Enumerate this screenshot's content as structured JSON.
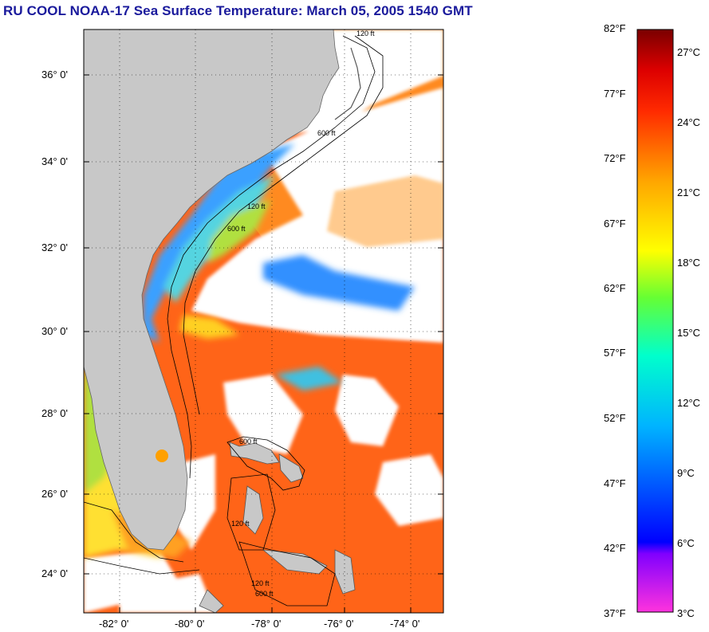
{
  "title": "RU COOL  NOAA-17  Sea Surface Temperature:  March 05, 2005 1540 GMT",
  "map": {
    "lat_labels": [
      "36° 0'",
      "34° 0'",
      "32° 0'",
      "30° 0'",
      "28° 0'",
      "26° 0'",
      "24° 0'"
    ],
    "lon_labels": [
      "-82° 0'",
      "-80° 0'",
      "-78° 0'",
      "-76° 0'",
      "-74° 0'"
    ],
    "contour_labels": [
      "120 ft",
      "600 ft",
      "120 ft",
      "600 ft",
      "120 ft",
      "600 ft",
      "120 ft",
      "600 ft"
    ],
    "colors": {
      "land": "#c8c8c8",
      "cloud": "#ffffff",
      "warm_water": "#ff5a10",
      "shelf_water": "#3fb8ff"
    }
  },
  "colorbar": {
    "fahrenheit_labels": [
      "82°F",
      "77°F",
      "72°F",
      "67°F",
      "62°F",
      "57°F",
      "52°F",
      "47°F",
      "42°F",
      "37°F"
    ],
    "celsius_labels": [
      "27°C",
      "24°C",
      "21°C",
      "18°C",
      "15°C",
      "12°C",
      "9°C",
      "6°C",
      "3°C"
    ],
    "range_f": [
      37,
      82
    ],
    "range_c": [
      3,
      27
    ]
  }
}
